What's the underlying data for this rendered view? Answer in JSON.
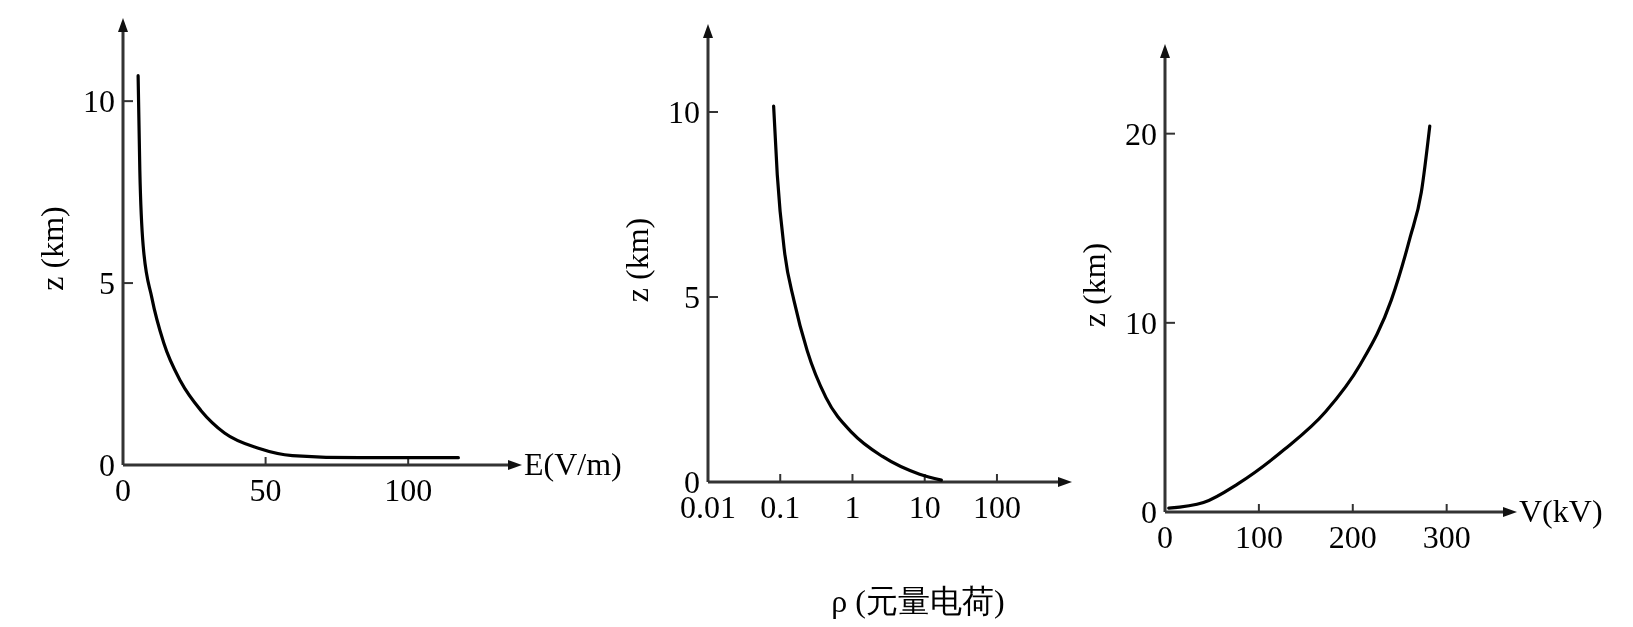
{
  "chart_data": [
    {
      "type": "line",
      "xlabel": "E(V/m)",
      "ylabel": "z (km)",
      "xlim": [
        0,
        135
      ],
      "ylim": [
        0,
        11.9
      ],
      "xticks": [
        0,
        50,
        100
      ],
      "yticks": [
        0,
        5,
        10
      ],
      "x": [
        5.3,
        5.9,
        7.1,
        10.1,
        14.3,
        20.2,
        27.3,
        35.6,
        47.5,
        59.4,
        83,
        117.6
      ],
      "series": [
        {
          "color": "#000000",
          "values": [
            10.7,
            8.1,
            6.0,
            4.6,
            3.35,
            2.3,
            1.5,
            0.88,
            0.46,
            0.26,
            0.2,
            0.2
          ]
        }
      ]
    },
    {
      "type": "line",
      "xlabel": "ρ (元量电荷)",
      "ylabel": "z (km)",
      "log": "x",
      "xlim": [
        0.01,
        700
      ],
      "ylim": [
        0,
        12
      ],
      "xticks": [
        0.01,
        0.1,
        1,
        10,
        100
      ],
      "yticks": [
        0,
        5,
        10
      ],
      "x": [
        0.081,
        0.091,
        0.115,
        0.155,
        0.236,
        0.43,
        1,
        2.6,
        8.5,
        17
      ],
      "series": [
        {
          "color": "#000000",
          "values": [
            10.16,
            8.3,
            6.2,
            4.9,
            3.55,
            2.28,
            1.32,
            0.69,
            0.21,
            0.05
          ]
        }
      ]
    },
    {
      "type": "line",
      "xlabel": "V(kV)",
      "ylabel": "z (km)",
      "xlim": [
        0,
        360
      ],
      "ylim": [
        0,
        24
      ],
      "xticks": [
        0,
        100,
        200,
        300
      ],
      "yticks": [
        0,
        10,
        20
      ],
      "x": [
        4,
        41,
        78,
        127,
        171,
        208,
        241,
        261,
        273,
        282
      ],
      "series": [
        {
          "color": "#000000",
          "values": [
            0.2,
            0.5,
            1.5,
            3.3,
            5.3,
            7.8,
            11.2,
            14.5,
            16.9,
            20.4
          ]
        }
      ]
    }
  ]
}
